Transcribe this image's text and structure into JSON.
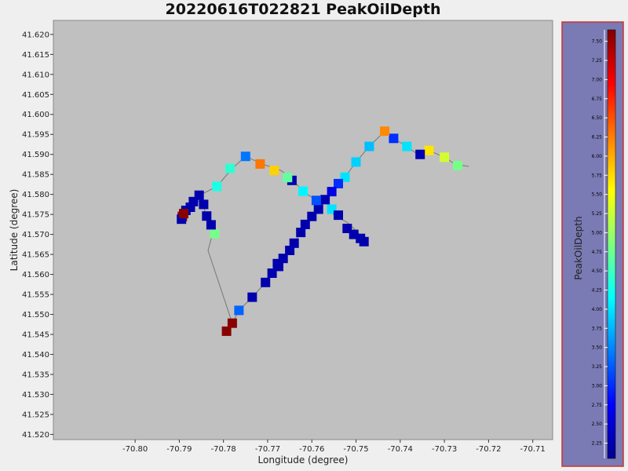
{
  "chart_data": {
    "type": "scatter",
    "title": "20220616T022821 PeakOilDepth",
    "xlabel": "Longitude (degree)",
    "ylabel": "Latitude (degree)",
    "xlim": [
      -70.8185,
      -70.7055
    ],
    "ylim": [
      41.5187,
      41.6235
    ],
    "x_ticks": [
      "-70.80",
      "-70.79",
      "-70.78",
      "-70.77",
      "-70.76",
      "-70.75",
      "-70.74",
      "-70.73",
      "-70.72",
      "-70.71"
    ],
    "y_ticks": [
      "41.520",
      "41.525",
      "41.530",
      "41.535",
      "41.540",
      "41.545",
      "41.550",
      "41.555",
      "41.560",
      "41.565",
      "41.570",
      "41.575",
      "41.580",
      "41.585",
      "41.590",
      "41.595",
      "41.600",
      "41.605",
      "41.610",
      "41.615",
      "41.620"
    ],
    "track": [
      [
        -70.7245,
        41.587
      ],
      [
        -70.7275,
        41.5875
      ],
      [
        -70.73,
        41.5893
      ],
      [
        -70.7335,
        41.591
      ],
      [
        -70.736,
        41.59
      ],
      [
        -70.7385,
        41.592
      ],
      [
        -70.7415,
        41.594
      ],
      [
        -70.7435,
        41.5958
      ],
      [
        -70.747,
        41.592
      ],
      [
        -70.75,
        41.5881
      ],
      [
        -70.7525,
        41.5843
      ],
      [
        -70.754,
        41.5827
      ],
      [
        -70.7555,
        41.5807
      ],
      [
        -70.757,
        41.5787
      ],
      [
        -70.7585,
        41.5765
      ],
      [
        -70.76,
        41.5745
      ],
      [
        -70.7615,
        41.5725
      ],
      [
        -70.7625,
        41.5705
      ],
      [
        -70.764,
        41.5678
      ],
      [
        -70.765,
        41.566
      ],
      [
        -70.7665,
        41.564
      ],
      [
        -70.7675,
        41.562
      ],
      [
        -70.769,
        41.5603
      ],
      [
        -70.7705,
        41.558
      ],
      [
        -70.7735,
        41.5543
      ],
      [
        -70.7765,
        41.551
      ],
      [
        -70.778,
        41.5478
      ],
      [
        -70.7835,
        41.566
      ],
      [
        -70.7825,
        41.57
      ],
      [
        -70.783,
        41.5724
      ],
      [
        -70.784,
        41.5745
      ],
      [
        -70.7845,
        41.5775
      ],
      [
        -70.786,
        41.5785
      ],
      [
        -70.787,
        41.5765
      ],
      [
        -70.788,
        41.575
      ],
      [
        -70.7893,
        41.574
      ],
      [
        -70.785,
        41.58
      ],
      [
        -70.7815,
        41.582
      ],
      [
        -70.778,
        41.5865
      ],
      [
        -70.775,
        41.5895
      ],
      [
        -70.771,
        41.5875
      ],
      [
        -70.767,
        41.586
      ],
      [
        -70.7645,
        41.5838
      ],
      [
        -70.762,
        41.5808
      ],
      [
        -70.759,
        41.5785
      ],
      [
        -70.757,
        41.5787
      ],
      [
        -70.755,
        41.5748
      ],
      [
        -70.752,
        41.573
      ],
      [
        -70.7505,
        41.5715
      ],
      [
        -70.7492,
        41.57
      ],
      [
        -70.748,
        41.5688
      ]
    ],
    "points": [
      {
        "x": -70.73,
        "y": 41.5893,
        "v": 5.3
      },
      {
        "x": -70.727,
        "y": 41.5872,
        "v": 4.8
      },
      {
        "x": -70.7335,
        "y": 41.591,
        "v": 5.7
      },
      {
        "x": -70.7355,
        "y": 41.59,
        "v": 2.3
      },
      {
        "x": -70.7385,
        "y": 41.592,
        "v": 4.0
      },
      {
        "x": -70.7415,
        "y": 41.594,
        "v": 3.0
      },
      {
        "x": -70.7435,
        "y": 41.5958,
        "v": 6.2
      },
      {
        "x": -70.747,
        "y": 41.592,
        "v": 3.8
      },
      {
        "x": -70.75,
        "y": 41.5881,
        "v": 3.9
      },
      {
        "x": -70.7525,
        "y": 41.5843,
        "v": 4.0
      },
      {
        "x": -70.754,
        "y": 41.5827,
        "v": 3.0
      },
      {
        "x": -70.7555,
        "y": 41.5807,
        "v": 2.6
      },
      {
        "x": -70.757,
        "y": 41.5787,
        "v": 2.3
      },
      {
        "x": -70.7555,
        "y": 41.5763,
        "v": 4.0
      },
      {
        "x": -70.754,
        "y": 41.5748,
        "v": 2.3
      },
      {
        "x": -70.7585,
        "y": 41.5763,
        "v": 2.3
      },
      {
        "x": -70.759,
        "y": 41.5785,
        "v": 3.2
      },
      {
        "x": -70.76,
        "y": 41.5745,
        "v": 2.3
      },
      {
        "x": -70.7615,
        "y": 41.5725,
        "v": 2.3
      },
      {
        "x": -70.7625,
        "y": 41.5705,
        "v": 2.3
      },
      {
        "x": -70.764,
        "y": 41.5678,
        "v": 2.3
      },
      {
        "x": -70.765,
        "y": 41.566,
        "v": 2.3
      },
      {
        "x": -70.7665,
        "y": 41.564,
        "v": 2.3
      },
      {
        "x": -70.7675,
        "y": 41.562,
        "v": 2.3
      },
      {
        "x": -70.7678,
        "y": 41.5627,
        "v": 2.3
      },
      {
        "x": -70.769,
        "y": 41.5603,
        "v": 2.3
      },
      {
        "x": -70.7705,
        "y": 41.558,
        "v": 2.3
      },
      {
        "x": -70.7735,
        "y": 41.5543,
        "v": 2.3
      },
      {
        "x": -70.7765,
        "y": 41.551,
        "v": 3.3
      },
      {
        "x": -70.778,
        "y": 41.5478,
        "v": 7.6
      },
      {
        "x": -70.7793,
        "y": 41.5458,
        "v": 7.6
      },
      {
        "x": -70.782,
        "y": 41.5702,
        "v": 4.8
      },
      {
        "x": -70.7828,
        "y": 41.5724,
        "v": 2.3
      },
      {
        "x": -70.7838,
        "y": 41.5746,
        "v": 2.3
      },
      {
        "x": -70.7845,
        "y": 41.5775,
        "v": 2.3
      },
      {
        "x": -70.7868,
        "y": 41.5782,
        "v": 2.3
      },
      {
        "x": -70.7875,
        "y": 41.5768,
        "v": 2.3
      },
      {
        "x": -70.7885,
        "y": 41.576,
        "v": 2.3
      },
      {
        "x": -70.7893,
        "y": 41.5745,
        "v": 7.6
      },
      {
        "x": -70.7895,
        "y": 41.5738,
        "v": 2.3
      },
      {
        "x": -70.789,
        "y": 41.5752,
        "v": 7.6
      },
      {
        "x": -70.7855,
        "y": 41.5798,
        "v": 2.3
      },
      {
        "x": -70.7815,
        "y": 41.582,
        "v": 4.3
      },
      {
        "x": -70.7785,
        "y": 41.5865,
        "v": 4.4
      },
      {
        "x": -70.775,
        "y": 41.5895,
        "v": 3.4
      },
      {
        "x": -70.7717,
        "y": 41.5876,
        "v": 6.3
      },
      {
        "x": -70.7685,
        "y": 41.586,
        "v": 5.8
      },
      {
        "x": -70.7645,
        "y": 41.5835,
        "v": 2.3
      },
      {
        "x": -70.7655,
        "y": 41.5842,
        "v": 4.7
      },
      {
        "x": -70.762,
        "y": 41.5808,
        "v": 4.1
      },
      {
        "x": -70.752,
        "y": 41.5715,
        "v": 2.3
      },
      {
        "x": -70.7505,
        "y": 41.57,
        "v": 2.3
      },
      {
        "x": -70.749,
        "y": 41.569,
        "v": 2.3
      },
      {
        "x": -70.7482,
        "y": 41.5682,
        "v": 2.3
      }
    ],
    "colorbar": {
      "label": "PeakOilDepth",
      "range": [
        2.05,
        7.65
      ],
      "ticks": [
        "2.25",
        "2.50",
        "2.75",
        "3.00",
        "3.25",
        "3.50",
        "3.75",
        "4.00",
        "4.25",
        "4.50",
        "4.75",
        "5.00",
        "5.25",
        "5.50",
        "5.75",
        "6.00",
        "6.25",
        "6.50",
        "6.75",
        "7.00",
        "7.25",
        "7.50"
      ],
      "colormap": "jet"
    },
    "grid": false,
    "legend": "colorbar-right"
  },
  "colors": {
    "plot_background": "#c0c0c0",
    "colorbar_background": "#7a7ab4",
    "colorbar_border": "#cc3333",
    "track_line": "#777777"
  }
}
